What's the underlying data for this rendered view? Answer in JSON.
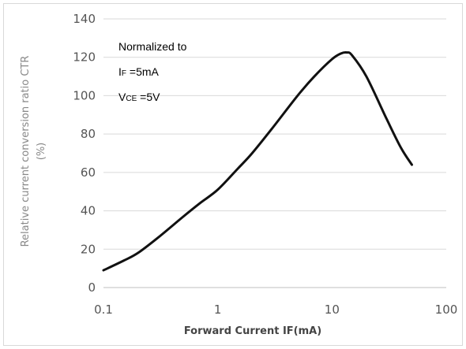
{
  "chart_data": {
    "type": "line",
    "title": "",
    "xlabel": "Forward Current IF(mA)",
    "ylabel_line1": "Relative current conversion ratio CTR",
    "ylabel_line2": "(%)",
    "x_scale": "log",
    "xlim": [
      0.1,
      100
    ],
    "ylim": [
      0,
      140
    ],
    "x_ticks": [
      "0.1",
      "1",
      "10",
      "100"
    ],
    "y_ticks": [
      "0",
      "20",
      "40",
      "60",
      "80",
      "100",
      "120",
      "140"
    ],
    "grid": "horizontal",
    "legend": "none",
    "line_color": "#111111",
    "annotation": {
      "line1": "Normalized to",
      "if_main": "I",
      "if_sub": "F",
      "if_value": " =5mA",
      "vce_main": "V",
      "vce_sub": "CE",
      "vce_value": "  =5V"
    },
    "series": [
      {
        "x": [
          0.1,
          0.15,
          0.2,
          0.3,
          0.5,
          0.7,
          1,
          1.5,
          2,
          3,
          5,
          7,
          10,
          12,
          13.5,
          15,
          20,
          30,
          40,
          50
        ],
        "values": [
          9,
          14,
          18,
          26,
          37,
          44,
          51,
          62,
          70,
          83,
          100,
          110,
          119,
          122,
          122.5,
          121,
          110,
          88,
          73,
          64
        ]
      }
    ]
  }
}
